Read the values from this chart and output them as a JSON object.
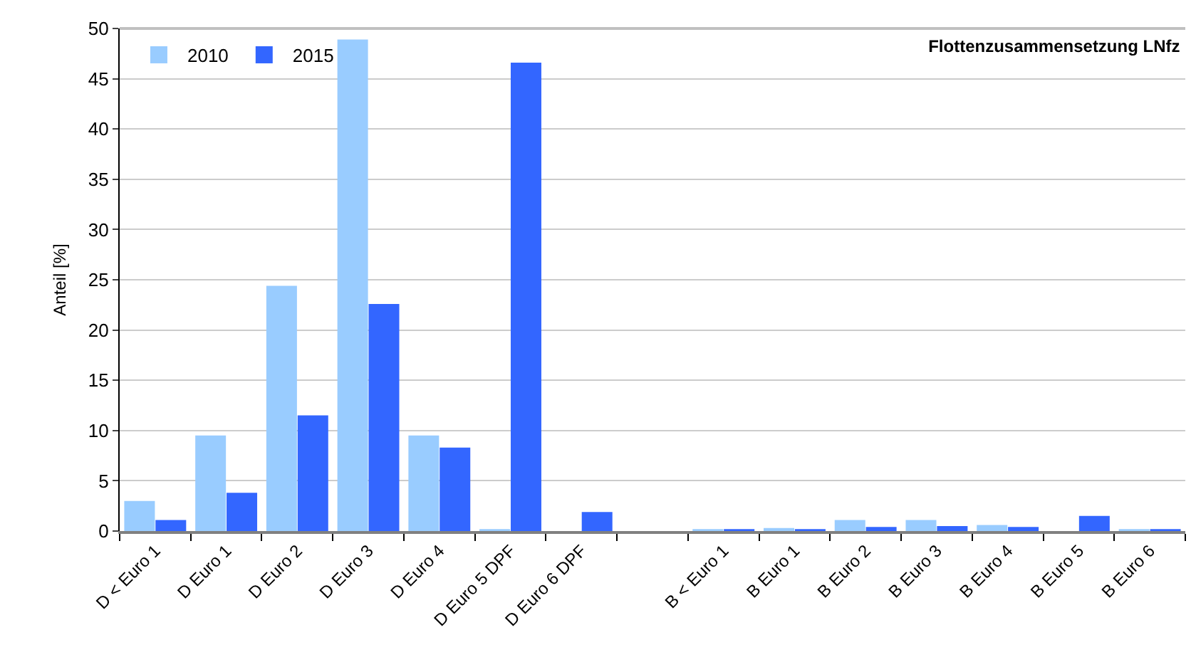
{
  "chart_data": {
    "type": "bar",
    "title": "Flottenzusammensetzung LNfz",
    "ylabel": "Anteil [%]",
    "categories": [
      "D < Euro 1",
      "D Euro 1",
      "D Euro 2",
      "D Euro 3",
      "D Euro 4",
      "D Euro 5 DPF",
      "D Euro 6 DPF",
      null,
      "B < Euro 1",
      "B Euro 1",
      "B Euro 2",
      "B Euro 3",
      "B Euro 4",
      "B Euro 5",
      "B Euro 6"
    ],
    "series": [
      {
        "name": "2010",
        "color": "#99ccff",
        "values": [
          3.0,
          9.5,
          24.4,
          48.9,
          9.5,
          0.2,
          null,
          null,
          0.2,
          0.3,
          1.1,
          1.1,
          0.6,
          null,
          0.2
        ]
      },
      {
        "name": "2015",
        "color": "#3366ff",
        "values": [
          1.1,
          3.8,
          11.5,
          22.6,
          8.3,
          46.6,
          1.9,
          null,
          0.2,
          0.2,
          0.4,
          0.5,
          0.4,
          1.5,
          0.2
        ]
      }
    ],
    "ylim": [
      0,
      50
    ],
    "yticks": [
      0,
      5,
      10,
      15,
      20,
      25,
      30,
      35,
      40,
      45,
      50
    ],
    "grid": "y",
    "legend": "top left"
  }
}
